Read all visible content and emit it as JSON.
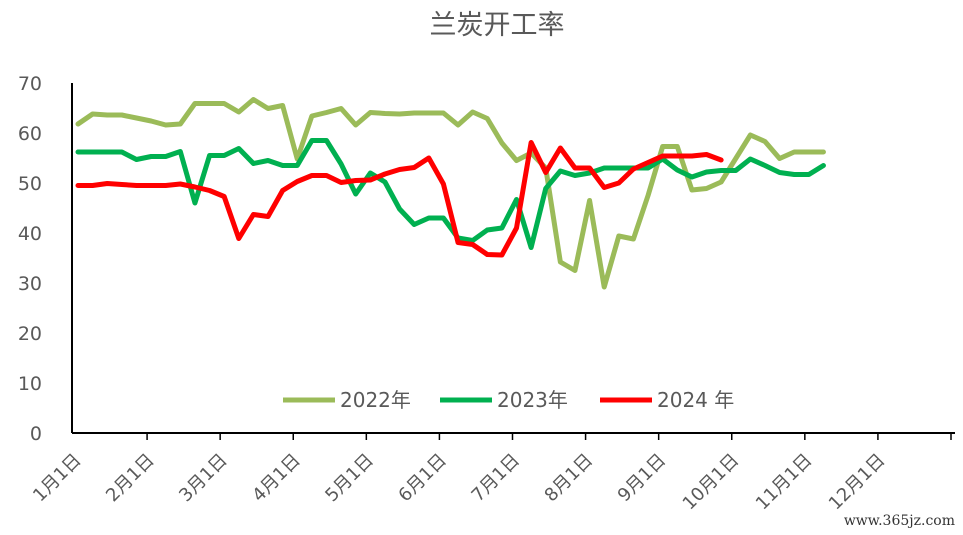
{
  "watermark": "www.365jz.com",
  "chart_data": {
    "type": "line",
    "title": "兰炭开工率",
    "ylim": [
      0,
      70
    ],
    "yticks": [
      0,
      10,
      20,
      30,
      40,
      50,
      60,
      70
    ],
    "xlim": [
      0,
      60
    ],
    "xticks": [
      {
        "label": "1月1日",
        "x": 0
      },
      {
        "label": "2月1日",
        "x": 5
      },
      {
        "label": "3月1日",
        "x": 10
      },
      {
        "label": "4月1日",
        "x": 15
      },
      {
        "label": "5月1日",
        "x": 20
      },
      {
        "label": "6月1日",
        "x": 25
      },
      {
        "label": "7月1日",
        "x": 30
      },
      {
        "label": "8月1日",
        "x": 35
      },
      {
        "label": "9月1日",
        "x": 40
      },
      {
        "label": "10月1日",
        "x": 45
      },
      {
        "label": "11月1日",
        "x": 50
      },
      {
        "label": "12月1日",
        "x": 55
      }
    ],
    "grid": false,
    "legend": "bottom",
    "series": [
      {
        "name": "2022年",
        "color": "#9BBB59",
        "values": [
          61.8,
          63.8,
          63.6,
          63.6,
          63.0,
          62.4,
          61.6,
          61.8,
          65.9,
          65.9,
          65.9,
          64.2,
          66.7,
          64.9,
          65.5,
          54.8,
          63.4,
          64.1,
          64.9,
          61.6,
          64.1,
          63.9,
          63.8,
          64.0,
          64.0,
          64.0,
          61.6,
          64.2,
          62.9,
          58.0,
          54.5,
          56.0,
          53.0,
          34.2,
          32.5,
          46.5,
          29.2,
          39.4,
          38.8,
          47.5,
          57.3,
          57.3,
          48.6,
          48.9,
          50.2,
          54.9,
          59.6,
          58.3,
          54.9,
          56.2,
          56.2,
          56.2
        ]
      },
      {
        "name": "2023年",
        "color": "#00B050",
        "values": [
          56.2,
          56.2,
          56.2,
          56.2,
          54.7,
          55.3,
          55.3,
          56.3,
          46.0,
          55.5,
          55.5,
          56.9,
          53.9,
          54.5,
          53.5,
          53.5,
          58.5,
          58.5,
          53.8,
          47.8,
          52.0,
          50.2,
          44.8,
          41.7,
          43.0,
          43.0,
          39.0,
          38.5,
          40.6,
          41.0,
          46.7,
          37.1,
          48.9,
          52.4,
          51.5,
          52.0,
          53.0,
          53.0,
          53.0,
          53.0,
          54.8,
          52.6,
          51.2,
          52.2,
          52.5,
          52.5,
          54.8,
          53.5,
          52.1,
          51.7,
          51.7,
          53.5
        ]
      },
      {
        "name": "2024 年",
        "color": "#FF0000",
        "values": [
          49.5,
          49.5,
          49.9,
          49.7,
          49.5,
          49.5,
          49.5,
          49.8,
          49.2,
          48.5,
          47.3,
          38.9,
          43.7,
          43.3,
          48.5,
          50.3,
          51.5,
          51.5,
          50.1,
          50.5,
          50.6,
          51.8,
          52.7,
          53.1,
          55.0,
          49.8,
          38.1,
          37.7,
          35.7,
          35.6,
          41.0,
          58.1,
          52.1,
          57.0,
          53.0,
          53.0,
          49.1,
          50.0,
          52.8,
          54.1,
          55.4,
          55.4,
          55.4,
          55.7,
          54.6
        ]
      }
    ]
  }
}
